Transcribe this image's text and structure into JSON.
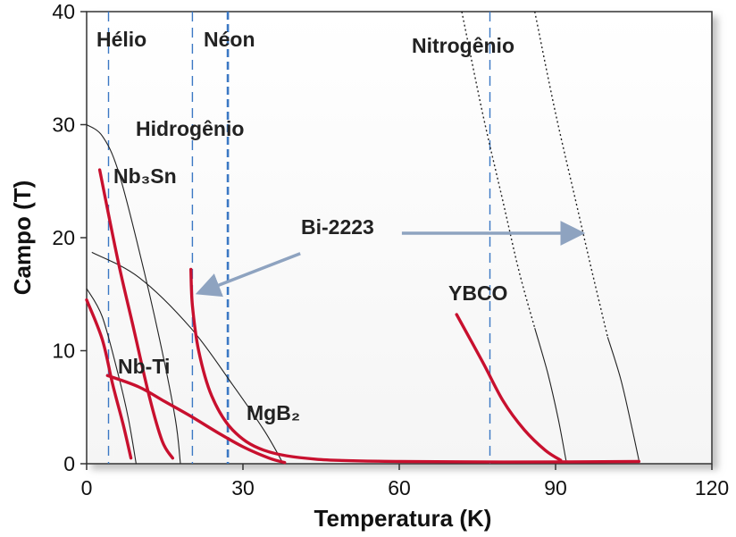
{
  "chart_data": {
    "type": "line",
    "xlabel": "Temperatura (K)",
    "ylabel": "Campo (T)",
    "xlim": [
      0,
      120
    ],
    "ylim": [
      0,
      40
    ],
    "xticks": [
      0,
      30,
      60,
      90,
      120
    ],
    "yticks": [
      0,
      10,
      20,
      30,
      40
    ],
    "grid": false,
    "reference_lines": [
      {
        "label": "Hélio",
        "x": 4.2
      },
      {
        "label": "Hidrogênio",
        "x": 20.3
      },
      {
        "label": "Néon",
        "x": 27.1
      },
      {
        "label": "Nitrogênio",
        "x": 77.4
      }
    ],
    "series": [
      {
        "name": "Nb₃Sn",
        "points": [
          [
            2.5,
            26
          ],
          [
            6,
            18
          ],
          [
            9,
            12
          ],
          [
            12,
            6
          ],
          [
            14.5,
            2
          ],
          [
            16.5,
            0.5
          ]
        ]
      },
      {
        "name": "Nb-Ti",
        "points": [
          [
            0,
            14.5
          ],
          [
            3,
            11
          ],
          [
            5,
            7
          ],
          [
            7,
            3.5
          ],
          [
            8.5,
            0.5
          ]
        ]
      },
      {
        "name": "MgB₂",
        "points": [
          [
            4,
            7.8
          ],
          [
            10,
            6.8
          ],
          [
            15,
            5.5
          ],
          [
            20,
            4.2
          ],
          [
            25,
            2.8
          ],
          [
            30,
            1.5
          ],
          [
            35,
            0.5
          ],
          [
            38,
            0.1
          ]
        ]
      },
      {
        "name": "Bi-2223",
        "points": [
          [
            20,
            17.2
          ],
          [
            20.3,
            14
          ],
          [
            21.5,
            10
          ],
          [
            24,
            6
          ],
          [
            28,
            3
          ],
          [
            34,
            1.2
          ],
          [
            44,
            0.4
          ],
          [
            60,
            0.2
          ],
          [
            80,
            0.15
          ],
          [
            106,
            0.2
          ]
        ]
      },
      {
        "name": "YBCO",
        "points": [
          [
            71,
            13.2
          ],
          [
            76,
            9
          ],
          [
            80,
            5.5
          ],
          [
            84,
            3
          ],
          [
            88,
            1.2
          ],
          [
            91,
            0.3
          ]
        ]
      }
    ],
    "annotations": [
      "Hélio",
      "Néon",
      "Hidrogênio",
      "Nitrogênio",
      "Nb₃Sn",
      "Nb-Ti",
      "MgB₂",
      "Bi-2223",
      "YBCO"
    ],
    "colors": {
      "data_curve": "#c8102e",
      "reference_line": "#3b78c4",
      "envelope": "#222222",
      "arrow": "#8ea3c0"
    }
  }
}
